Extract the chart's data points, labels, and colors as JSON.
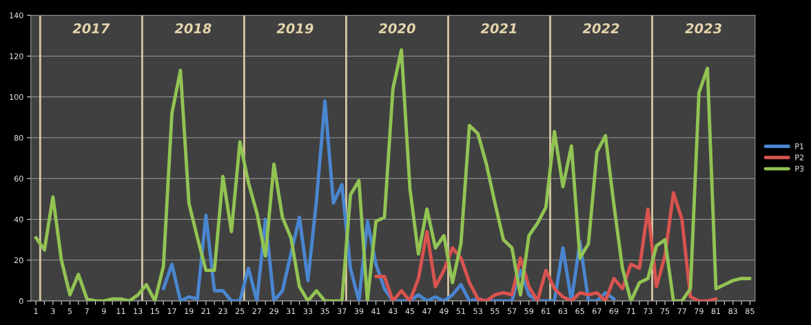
{
  "chart_data": {
    "type": "line",
    "x": [
      1,
      2,
      3,
      4,
      5,
      6,
      7,
      8,
      9,
      10,
      11,
      12,
      13,
      14,
      15,
      16,
      17,
      18,
      19,
      20,
      21,
      22,
      23,
      24,
      25,
      26,
      27,
      28,
      29,
      30,
      31,
      32,
      33,
      34,
      35,
      36,
      37,
      38,
      39,
      40,
      41,
      42,
      43,
      44,
      45,
      46,
      47,
      48,
      49,
      50,
      51,
      52,
      53,
      54,
      55,
      56,
      57,
      58,
      59,
      60,
      61,
      62,
      63,
      64,
      65,
      66,
      67,
      68,
      69,
      70,
      71,
      72,
      73,
      74,
      75,
      76,
      77,
      78,
      79,
      80,
      81,
      82,
      83,
      84,
      85
    ],
    "series": [
      {
        "name": "P1",
        "color": "#4a86d0",
        "values": [
          null,
          null,
          null,
          null,
          null,
          null,
          null,
          null,
          null,
          null,
          null,
          null,
          null,
          null,
          null,
          6,
          18,
          0,
          2,
          1,
          42,
          5,
          5,
          0,
          0,
          16,
          0,
          40,
          0,
          5,
          23,
          41,
          10,
          49,
          98,
          48,
          57,
          16,
          0,
          39,
          18,
          6,
          0,
          0,
          0,
          3,
          0,
          2,
          0,
          3,
          8,
          0,
          1,
          0,
          0,
          0,
          0,
          15,
          3,
          0,
          0,
          0,
          26,
          0,
          29,
          0,
          0,
          4,
          1,
          null,
          null,
          null,
          null,
          null,
          null,
          null,
          null,
          null,
          null,
          null,
          null,
          null,
          null,
          null,
          null
        ]
      },
      {
        "name": "P2",
        "color": "#d9534f",
        "values": [
          null,
          null,
          null,
          null,
          null,
          null,
          null,
          null,
          null,
          null,
          null,
          null,
          null,
          null,
          null,
          null,
          null,
          null,
          null,
          null,
          null,
          null,
          null,
          null,
          null,
          null,
          null,
          null,
          null,
          null,
          null,
          null,
          null,
          null,
          null,
          null,
          null,
          null,
          null,
          null,
          12,
          12,
          0,
          5,
          0,
          11,
          34,
          7,
          15,
          26,
          21,
          9,
          1,
          0,
          3,
          4,
          3,
          21,
          7,
          0,
          15,
          6,
          2,
          0,
          4,
          3,
          4,
          0,
          11,
          6,
          18,
          16,
          45,
          7,
          22,
          53,
          40,
          2,
          0,
          0,
          1,
          null,
          null,
          null,
          null
        ]
      },
      {
        "name": "P3",
        "color": "#92c353",
        "values": [
          31,
          25,
          51,
          20,
          3,
          13,
          1,
          0,
          0,
          1,
          1,
          0,
          3,
          8,
          0,
          17,
          92,
          113,
          48,
          31,
          15,
          15,
          61,
          34,
          78,
          58,
          43,
          22,
          67,
          41,
          31,
          7,
          0,
          5,
          0,
          0,
          0,
          52,
          59,
          0,
          39,
          41,
          104,
          123,
          55,
          23,
          45,
          26,
          32,
          9,
          28,
          86,
          82,
          67,
          48,
          30,
          26,
          3,
          32,
          38,
          46,
          83,
          56,
          76,
          21,
          28,
          73,
          81,
          47,
          16,
          0,
          9,
          11,
          27,
          30,
          0,
          0,
          6,
          102,
          114,
          6,
          8,
          10,
          11,
          11
        ]
      }
    ],
    "xlim": [
      0.4,
      85.6
    ],
    "xticks": [
      1,
      {
        "value": 2,
        "label": null
      },
      3,
      {
        "value": 4,
        "label": null
      },
      5,
      {
        "value": 6,
        "label": null
      },
      7,
      {
        "value": 8,
        "label": null
      },
      9,
      {
        "value": 10,
        "label": null
      },
      11,
      {
        "value": 12,
        "label": null
      },
      13,
      {
        "value": 14,
        "label": null
      },
      15,
      {
        "value": 16,
        "label": null
      },
      17,
      {
        "value": 18,
        "label": null
      },
      19,
      {
        "value": 20,
        "label": null
      },
      21,
      {
        "value": 22,
        "label": null
      },
      23,
      {
        "value": 24,
        "label": null
      },
      25,
      {
        "value": 26,
        "label": null
      },
      27,
      {
        "value": 28,
        "label": null
      },
      29,
      {
        "value": 30,
        "label": null
      },
      31,
      {
        "value": 32,
        "label": null
      },
      33,
      {
        "value": 34,
        "label": null
      },
      35,
      {
        "value": 36,
        "label": null
      },
      37,
      {
        "value": 38,
        "label": null
      },
      39,
      {
        "value": 40,
        "label": null
      },
      41,
      {
        "value": 42,
        "label": null
      },
      43,
      {
        "value": 44,
        "label": null
      },
      45,
      {
        "value": 46,
        "label": null
      },
      47,
      {
        "value": 48,
        "label": null
      },
      49,
      {
        "value": 50,
        "label": null
      },
      51,
      {
        "value": 52,
        "label": null
      },
      53,
      {
        "value": 54,
        "label": null
      },
      55,
      {
        "value": 56,
        "label": null
      },
      57,
      {
        "value": 58,
        "label": null
      },
      59,
      {
        "value": 60,
        "label": null
      },
      61,
      {
        "value": 62,
        "label": null
      },
      63,
      {
        "value": 64,
        "label": null
      },
      65,
      {
        "value": 66,
        "label": null
      },
      67,
      {
        "value": 68,
        "label": null
      },
      69,
      {
        "value": 70,
        "label": null
      },
      71,
      {
        "value": 72,
        "label": null
      },
      73,
      {
        "value": 74,
        "label": null
      },
      75,
      {
        "value": 76,
        "label": null
      },
      77,
      {
        "value": 78,
        "label": null
      },
      79,
      {
        "value": 80,
        "label": null
      },
      81,
      {
        "value": 82,
        "label": null
      },
      83,
      {
        "value": 84,
        "label": null
      },
      85
    ],
    "ylim": [
      0,
      140
    ],
    "yticks": [
      0,
      20,
      40,
      60,
      80,
      100,
      120,
      140
    ],
    "grid": "y",
    "legend": "right",
    "marker": "none",
    "line_style": "solid",
    "ref_lines": [
      {
        "axis": "x",
        "value": 1.5,
        "color": "#d9c9a3"
      },
      {
        "axis": "x",
        "value": 13.5,
        "color": "#d9c9a3"
      },
      {
        "axis": "x",
        "value": 25.5,
        "color": "#d9c9a3"
      },
      {
        "axis": "x",
        "value": 37.5,
        "color": "#d9c9a3"
      },
      {
        "axis": "x",
        "value": 49.5,
        "color": "#d9c9a3"
      },
      {
        "axis": "x",
        "value": 61.5,
        "color": "#d9c9a3"
      },
      {
        "axis": "x",
        "value": 73.5,
        "color": "#d9c9a3"
      }
    ],
    "annotations": [
      "2017",
      "2018",
      "2019",
      "2020",
      "2021",
      "2022",
      "2023"
    ]
  }
}
